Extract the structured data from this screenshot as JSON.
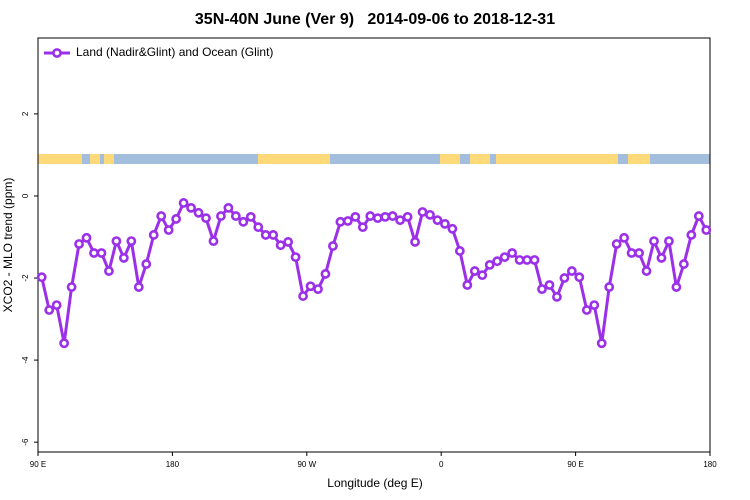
{
  "chart_data": {
    "type": "line",
    "title": "35N-40N June (Ver 9)   2014-09-06 to 2018-12-31",
    "xlabel": "Longitude (deg E)",
    "ylabel": "XCO2 - MLO trend (ppm)",
    "xlim": [
      90,
      540
    ],
    "ylim": [
      -6.24,
      3.85
    ],
    "xticks": [
      {
        "value": 90,
        "label": "90 E"
      },
      180,
      {
        "value": 270,
        "label": "90 W"
      },
      {
        "value": 360,
        "label": "0"
      },
      {
        "value": 450,
        "label": "90 E"
      },
      {
        "value": 540,
        "label": "180"
      }
    ],
    "yticks": [
      -6,
      -4,
      -2,
      0,
      2
    ],
    "legend": "top-left",
    "x": [
      92.5,
      97.5,
      102.5,
      107.5,
      112.5,
      117.5,
      122.5,
      127.5,
      132.5,
      137.5,
      142.5,
      147.5,
      152.5,
      157.5,
      162.5,
      167.5,
      172.5,
      177.5,
      182.5,
      187.5,
      192.5,
      197.5,
      202.5,
      207.5,
      212.5,
      217.5,
      222.5,
      227.5,
      232.5,
      237.5,
      242.5,
      247.5,
      252.5,
      257.5,
      262.5,
      267.5,
      272.5,
      277.5,
      282.5,
      287.5,
      292.5,
      297.5,
      302.5,
      307.5,
      312.5,
      317.5,
      322.5,
      327.5,
      332.5,
      337.5,
      342.5,
      347.5,
      352.5,
      357.5,
      362.5,
      367.5,
      372.5,
      377.5,
      382.5,
      387.5,
      392.5,
      397.5,
      402.5,
      407.5,
      412.5,
      417.5,
      422.5,
      427.5,
      432.5,
      437.5,
      442.5,
      447.5,
      452.5,
      457.5,
      462.5,
      467.5,
      472.5,
      477.5,
      482.5,
      487.5,
      492.5,
      497.5,
      502.5,
      507.5,
      512.5,
      517.5,
      522.5,
      527.5,
      532.5,
      537.5
    ],
    "series": [
      {
        "name": "Land (Nadir&Glint) and Ocean (Glint)",
        "color": "#9b30e8",
        "values": [
          -1.98,
          -2.78,
          -2.66,
          -3.59,
          -2.22,
          -1.17,
          -1.02,
          -1.39,
          -1.39,
          -1.83,
          -1.1,
          -1.51,
          -1.1,
          -2.22,
          -1.66,
          -0.95,
          -0.49,
          -0.83,
          -0.56,
          -0.17,
          -0.29,
          -0.41,
          -0.54,
          -1.1,
          -0.49,
          -0.29,
          -0.49,
          -0.63,
          -0.51,
          -0.76,
          -0.95,
          -0.95,
          -1.2,
          -1.12,
          -1.49,
          -2.44,
          -2.2,
          -2.27,
          -1.9,
          -1.22,
          -0.63,
          -0.61,
          -0.51,
          -0.76,
          -0.49,
          -0.54,
          -0.51,
          -0.49,
          -0.59,
          -0.51,
          -1.12,
          -0.39,
          -0.46,
          -0.59,
          -0.68,
          -0.8,
          -1.34,
          -2.17,
          -1.83,
          -1.93,
          -1.68,
          -1.59,
          -1.49,
          -1.39,
          -1.56,
          -1.56,
          -1.56,
          -2.27,
          -2.17,
          -2.46,
          -2.0,
          -1.83,
          -1.98,
          -2.78,
          -2.66,
          -3.59,
          -2.22,
          -1.17,
          -1.02,
          -1.39,
          -1.39,
          -1.83,
          -1.1,
          -1.51,
          -1.1,
          -2.22,
          -1.66,
          -0.95,
          -0.49,
          -0.83
        ]
      }
    ]
  }
}
